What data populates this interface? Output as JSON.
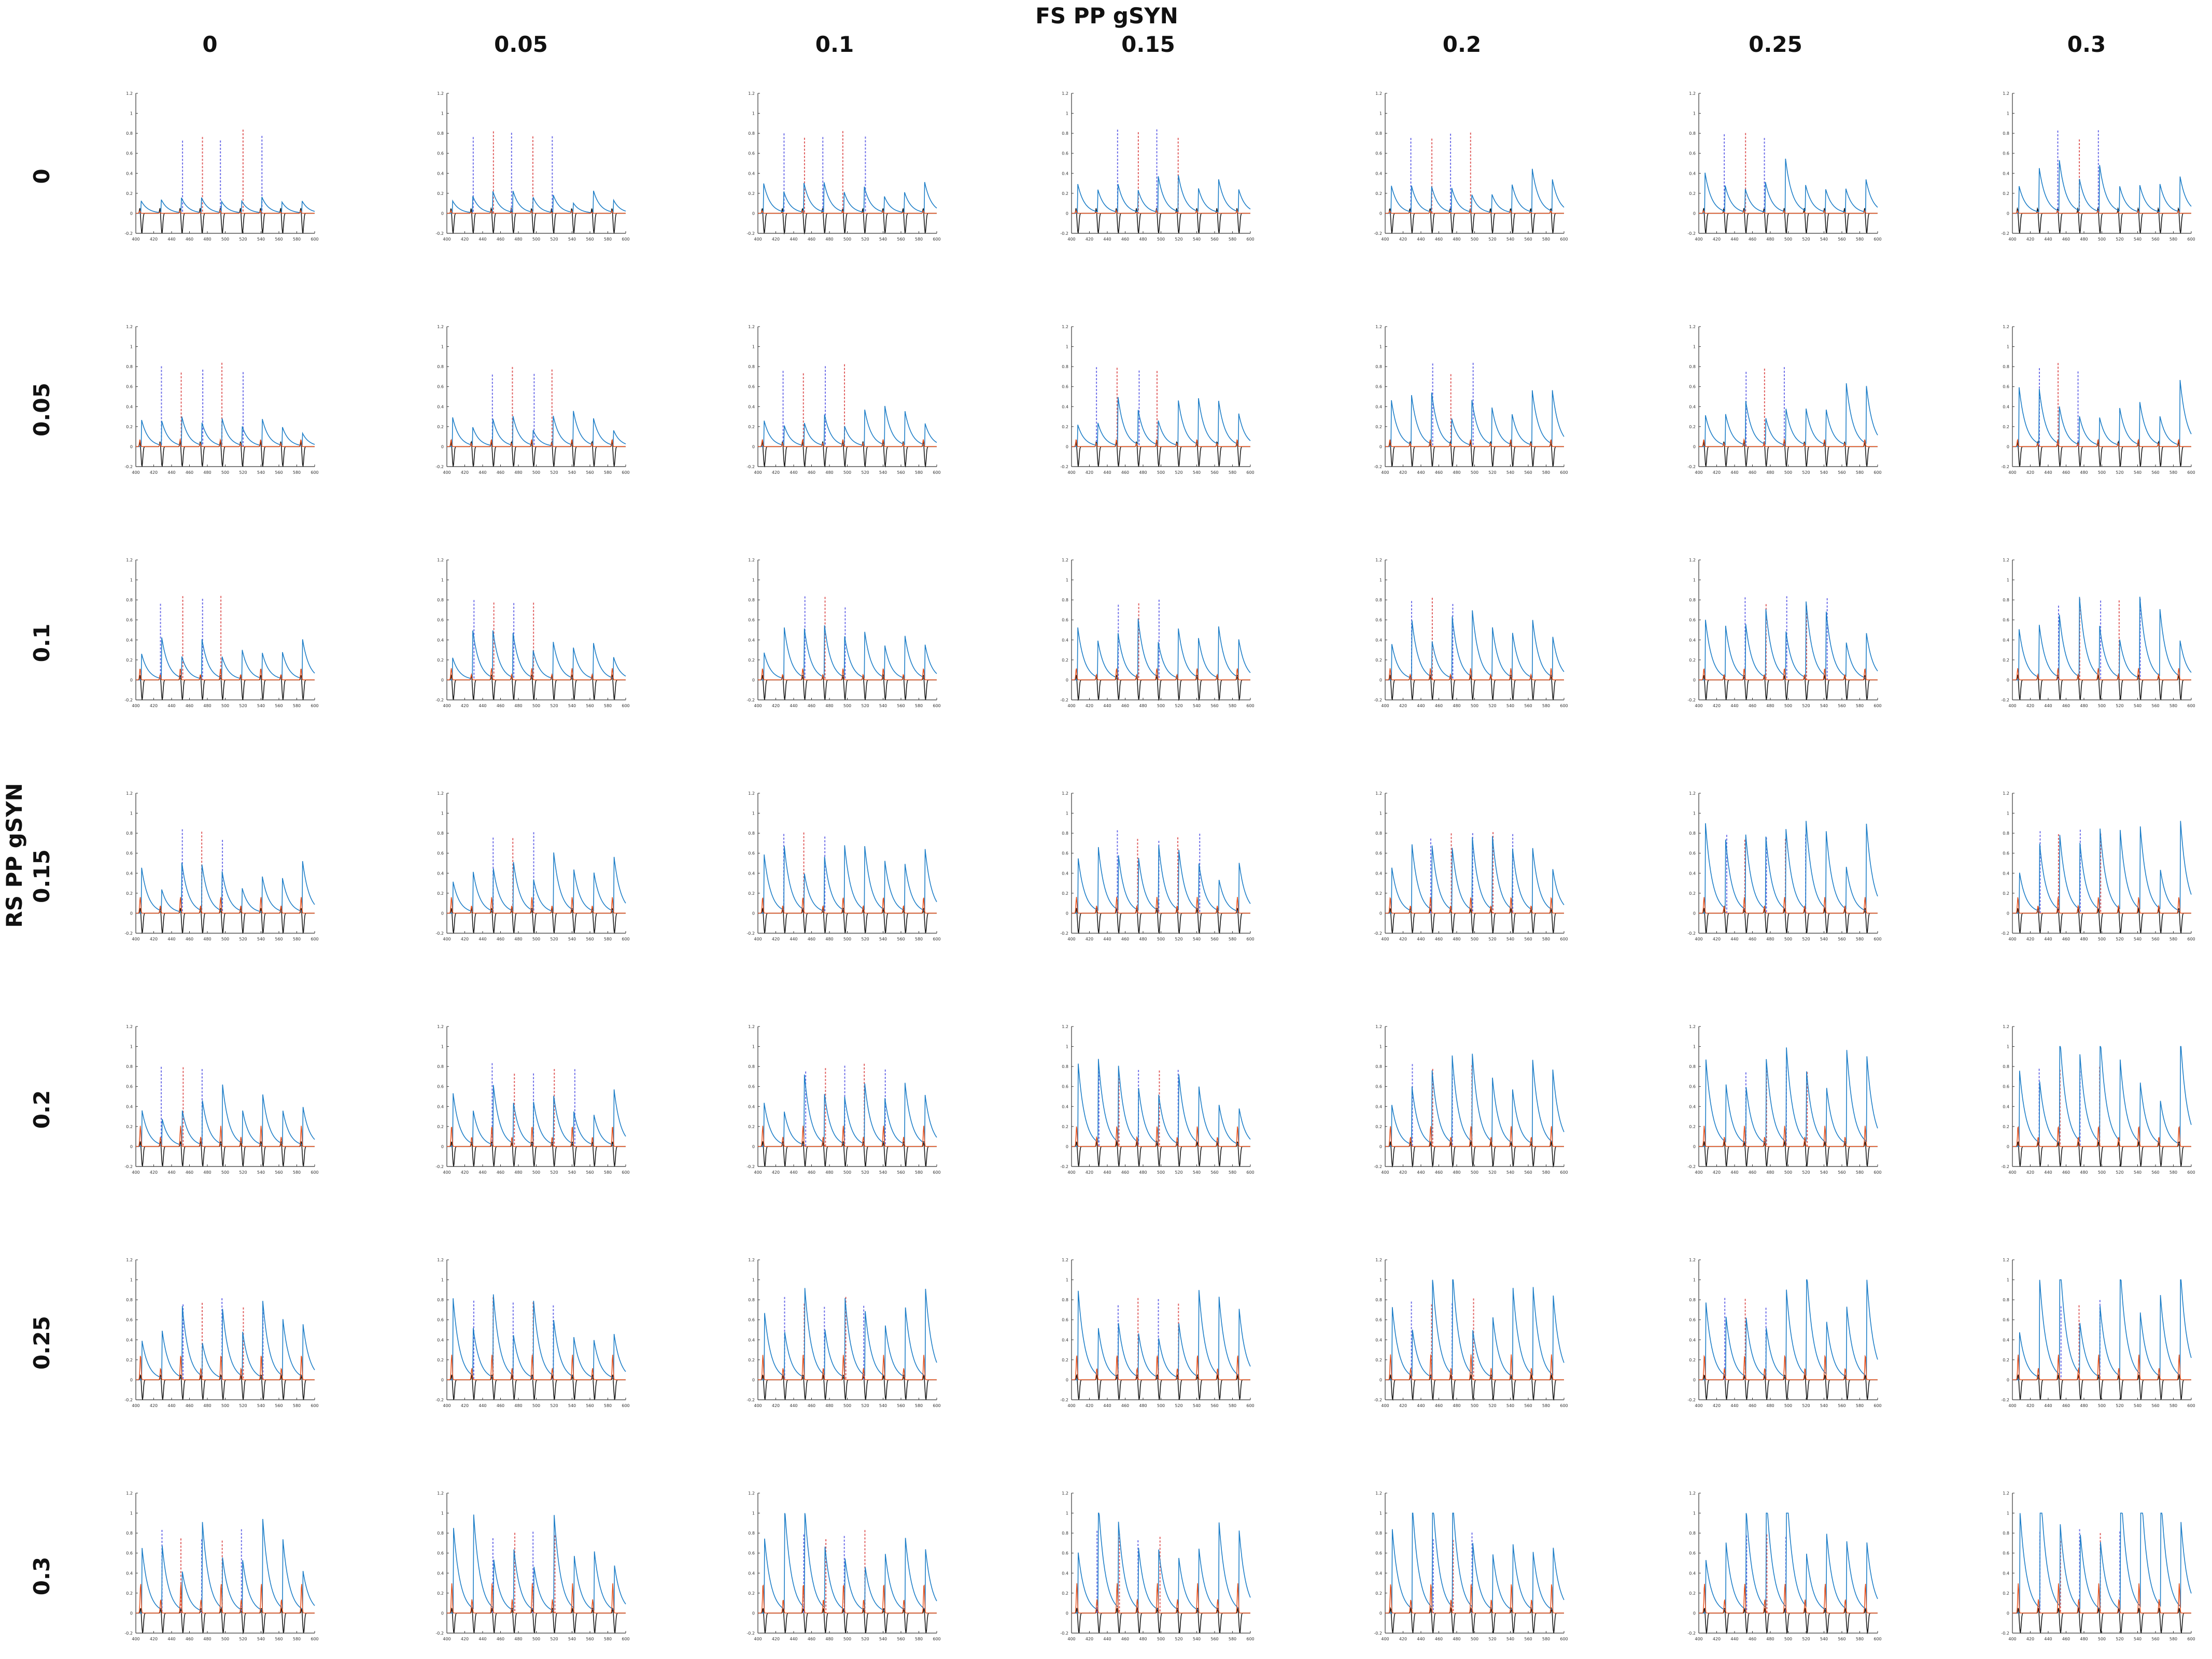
{
  "figure": {
    "column_title": "FS PP gSYN",
    "row_title": "RS PP gSYN",
    "column_values": [
      "0",
      "0.05",
      "0.1",
      "0.15",
      "0.2",
      "0.25",
      "0.3"
    ],
    "row_values": [
      "0",
      "0.05",
      "0.1",
      "0.15",
      "0.2",
      "0.25",
      "0.3"
    ]
  },
  "colors": {
    "blue_trace": "#1f7fc8",
    "orange_trace": "#e8501a",
    "black_trace": "#1a1a1a",
    "dashed_blue": "#6e6ee8",
    "dashed_red": "#e06060",
    "axis": "#333333"
  },
  "chart_data": {
    "type": "line",
    "description_grid": "7x7 grid of small multiples",
    "panel_xlim": [
      400,
      600
    ],
    "panel_ylim": [
      -0.2,
      1.2
    ],
    "panel_yticks": [
      "-0.2",
      "0",
      "0.2",
      "0.4",
      "0.6",
      "0.8",
      "1",
      "1.2"
    ],
    "panel_xticks_set_a": [
      "400",
      "420",
      "440",
      "460",
      "480",
      "500",
      "520",
      "540",
      "560",
      "580",
      "600"
    ],
    "panel_xticks_set_b": [
      "400",
      "420",
      "440",
      "460",
      "480",
      "500",
      "520",
      "540",
      "560",
      "580",
      "600"
    ],
    "series": [
      {
        "color_key": "blue_trace"
      },
      {
        "color_key": "orange_trace"
      },
      {
        "color_key": "black_trace"
      }
    ]
  }
}
